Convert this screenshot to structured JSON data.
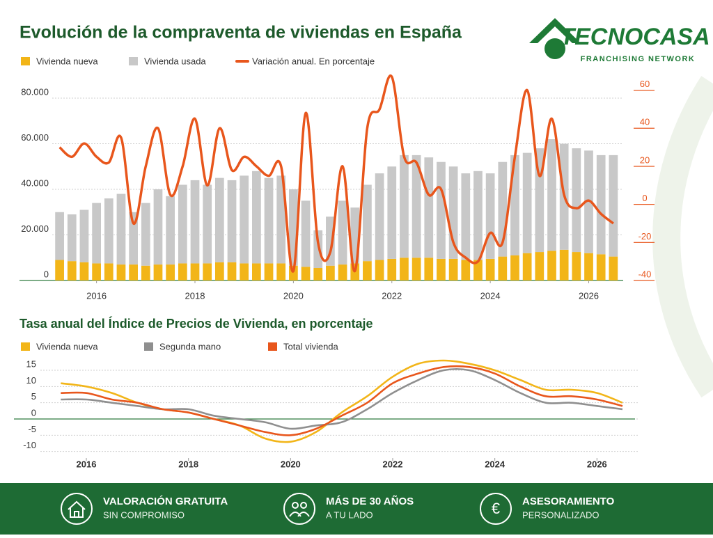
{
  "logo": {
    "name": "TECNOCASA",
    "tagline": "FRANCHISING NETWORK"
  },
  "chart_data": [
    {
      "type": "combo",
      "title": "Evolución de la compraventa de viviendas en España",
      "stacked": true,
      "grid": true,
      "x": [
        2015.25,
        2015.5,
        2015.75,
        2016,
        2016.25,
        2016.5,
        2016.75,
        2017,
        2017.25,
        2017.5,
        2017.75,
        2018,
        2018.25,
        2018.5,
        2018.75,
        2019,
        2019.25,
        2019.5,
        2019.75,
        2020,
        2020.25,
        2020.5,
        2020.75,
        2021,
        2021.25,
        2021.5,
        2021.75,
        2022,
        2022.25,
        2022.5,
        2022.75,
        2023,
        2023.25,
        2023.5,
        2023.75,
        2024,
        2024.25,
        2024.5,
        2024.75,
        2025,
        2025.25,
        2025.5,
        2025.75,
        2026,
        2026.25,
        2026.5
      ],
      "xlim": [
        2015.1,
        2026.7
      ],
      "xticks": [
        2016,
        2018,
        2020,
        2022,
        2024,
        2026
      ],
      "ylim": [
        0,
        91000
      ],
      "yticks": [
        0,
        {
          "value": 20000,
          "label": "20.000"
        },
        {
          "value": 40000,
          "label": "40.000"
        },
        {
          "value": 60000,
          "label": "60.000"
        },
        {
          "value": 80000,
          "label": "80.000"
        }
      ],
      "y2lim": [
        -40,
        69
      ],
      "y2ticks": [
        60,
        40,
        20,
        0,
        -20,
        -40
      ],
      "series": [
        {
          "name": "Vivienda nueva",
          "type": "bar",
          "color": "#f2b518",
          "values": [
            9000,
            8500,
            8000,
            7500,
            7500,
            7000,
            7000,
            6500,
            7000,
            7000,
            7500,
            7500,
            7500,
            8000,
            8000,
            7500,
            7500,
            7500,
            7500,
            6500,
            6000,
            5500,
            6500,
            7000,
            7500,
            8500,
            9000,
            9500,
            10000,
            10000,
            10000,
            9500,
            9500,
            9000,
            9000,
            9500,
            10500,
            11000,
            12000,
            12500,
            13000,
            13500,
            12500,
            12000,
            11500,
            10500
          ]
        },
        {
          "name": "Vivienda usada",
          "type": "bar",
          "color": "#c8c8c8",
          "values": [
            21000,
            20500,
            23000,
            26500,
            28500,
            31000,
            23000,
            27500,
            33000,
            30000,
            34500,
            36500,
            34500,
            37000,
            36000,
            38500,
            40500,
            37500,
            38500,
            33500,
            29000,
            16500,
            21500,
            28000,
            24500,
            33500,
            38000,
            40500,
            45000,
            45000,
            44000,
            42500,
            40500,
            38000,
            39000,
            37500,
            41500,
            44000,
            44000,
            45500,
            49000,
            46500,
            45500,
            45000,
            43500,
            44500
          ]
        },
        {
          "name": "Variación anual. En porcentaje",
          "type": "line",
          "axis": "y2",
          "color": "#e8561c",
          "values": [
            30,
            25,
            32,
            25,
            22,
            35,
            -10,
            20,
            40,
            5,
            20,
            45,
            10,
            40,
            18,
            25,
            20,
            15,
            20,
            -35,
            48,
            -20,
            -25,
            20,
            -35,
            40,
            50,
            67,
            25,
            22,
            5,
            8,
            -20,
            -28,
            -30,
            -15,
            -20,
            25,
            60,
            15,
            45,
            5,
            -2,
            2,
            -5,
            -10
          ]
        }
      ]
    },
    {
      "type": "line",
      "title": "Tasa anual del Índice de Precios de Vivienda, en porcentaje",
      "x": [
        2015.5,
        2016,
        2016.5,
        2017,
        2017.5,
        2018,
        2018.5,
        2019,
        2019.5,
        2020,
        2020.5,
        2021,
        2021.5,
        2022,
        2022.5,
        2023,
        2023.5,
        2024,
        2024.5,
        2025,
        2025.5,
        2026,
        2026.5
      ],
      "xlim": [
        2015.1,
        2026.8
      ],
      "xticks": [
        2016,
        2018,
        2020,
        2022,
        2024,
        2026
      ],
      "ylim": [
        -12,
        18
      ],
      "yticks": [
        15,
        10,
        5,
        0,
        -5,
        -10
      ],
      "grid": true,
      "series": [
        {
          "name": "Vivienda nueva",
          "color": "#f2b518",
          "values": [
            11,
            10,
            8,
            5,
            3,
            2,
            0,
            -2,
            -6,
            -7,
            -4,
            2,
            7,
            13,
            17,
            18,
            17,
            15,
            12,
            9,
            9,
            8,
            5
          ]
        },
        {
          "name": "Segunda mano",
          "color": "#8f8f8f",
          "values": [
            6,
            6,
            5,
            4,
            3,
            3,
            1,
            0,
            -1,
            -3,
            -2,
            -1,
            3,
            8,
            12,
            15,
            15,
            12,
            8,
            5,
            5,
            4,
            3
          ]
        },
        {
          "name": "Total vivienda",
          "color": "#e8561c",
          "values": [
            8,
            8,
            6,
            5,
            3,
            2,
            0,
            -2,
            -4,
            -5,
            -3,
            1,
            5,
            11,
            14,
            16,
            16,
            14,
            10,
            7,
            7,
            6,
            4
          ]
        }
      ]
    }
  ],
  "footer": {
    "items": [
      {
        "title": "VALORACIÓN GRATUITA",
        "subtitle": "SIN COMPROMISO"
      },
      {
        "title": "MÁS DE 30 AÑOS",
        "subtitle": "A TU LADO"
      },
      {
        "title": "ASESORAMIENTO",
        "subtitle": "PERSONALIZADO"
      }
    ]
  }
}
